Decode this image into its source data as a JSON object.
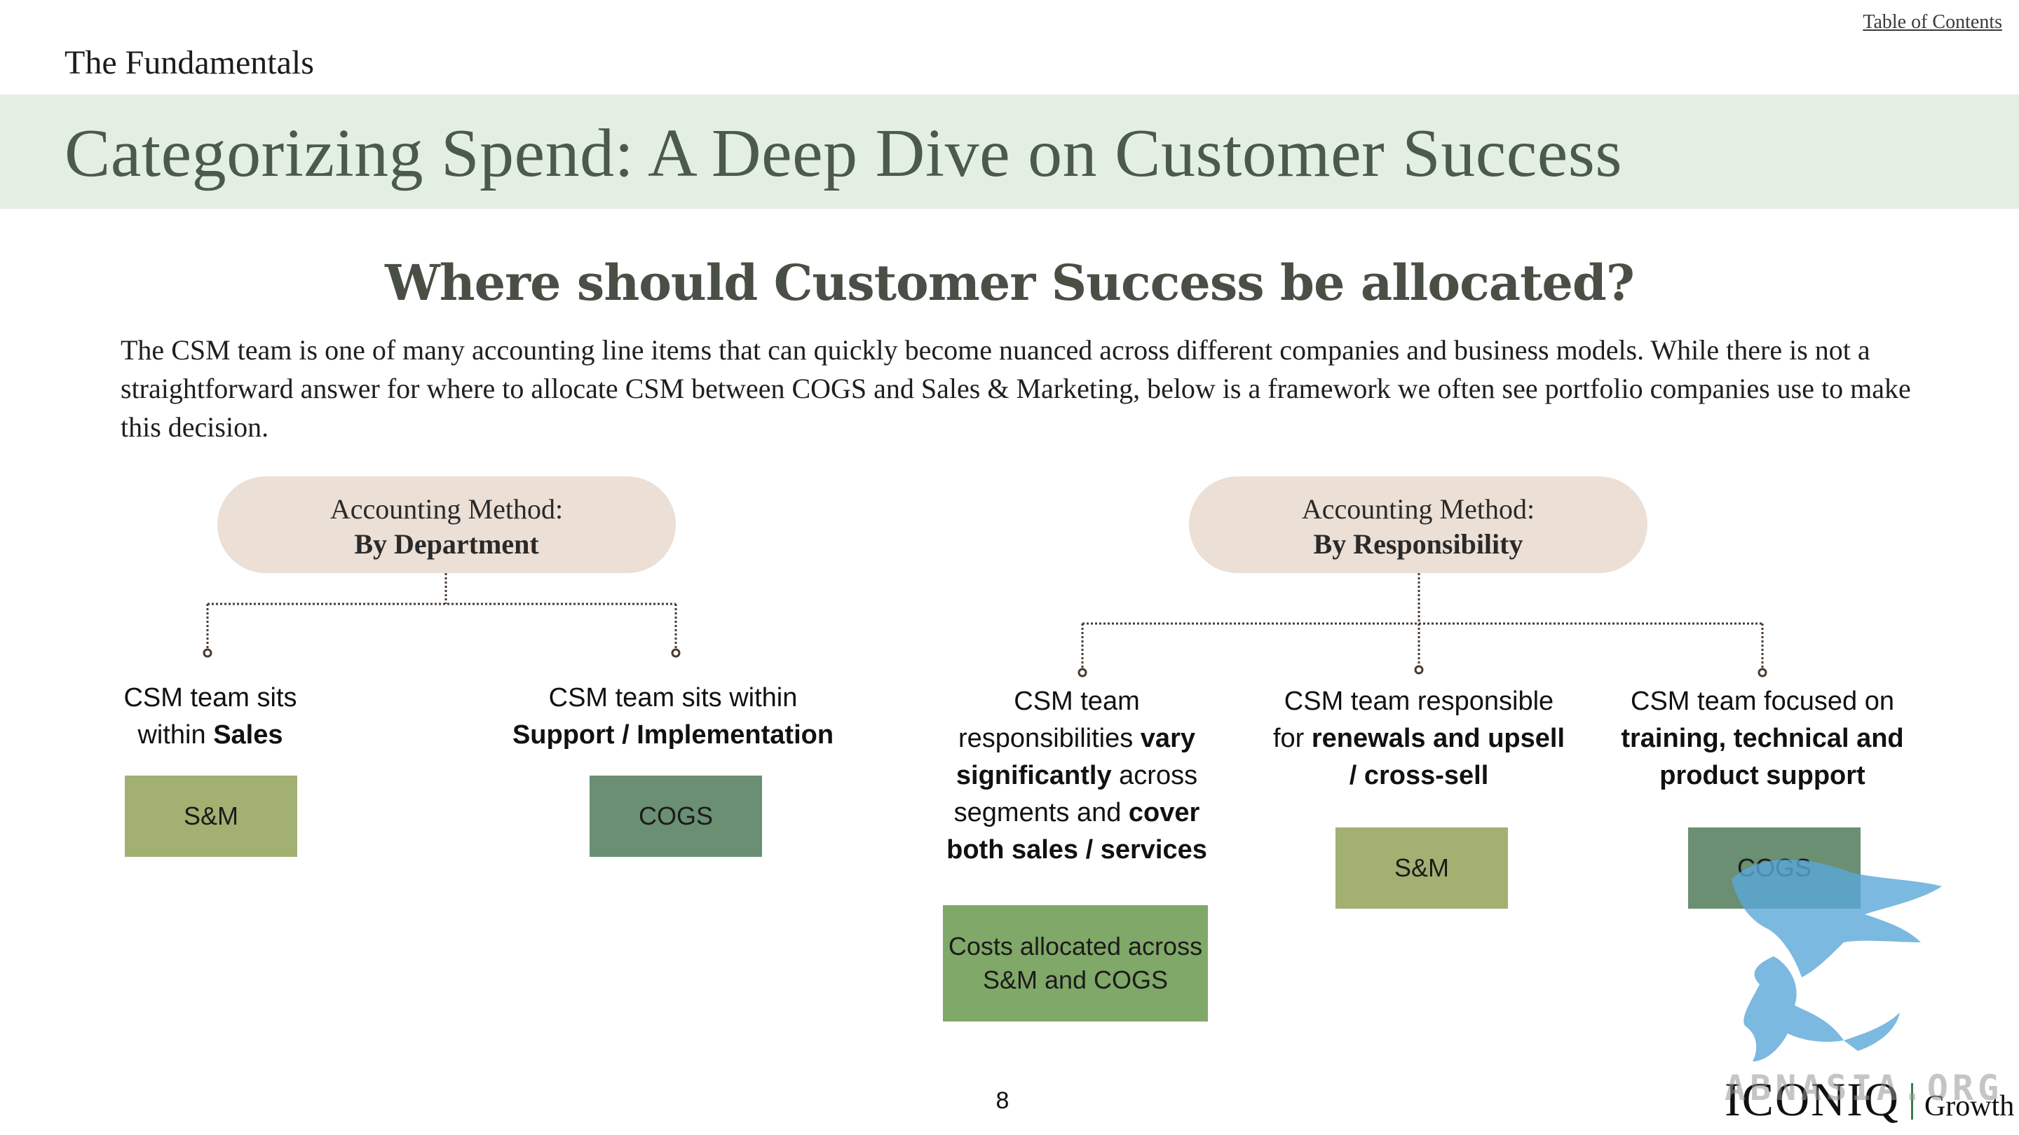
{
  "header": {
    "toc_link": "Table of Contents",
    "section": "The Fundamentals",
    "title": "Categorizing Spend: A Deep Dive on Customer Success"
  },
  "main": {
    "question": "Where should Customer Success be allocated?",
    "intro": "The CSM team is one of many accounting line items that can quickly become nuanced across different companies and business models. While there is not a straightforward answer for where to allocate CSM between COGS and Sales & Marketing, below is a framework we often see portfolio companies use to make this decision."
  },
  "methods": {
    "department": {
      "label": "Accounting Method:",
      "name": "By Department",
      "items": [
        {
          "text_1": "CSM team sits",
          "text_2": "within ",
          "bold": "Sales",
          "tag": "S&M"
        },
        {
          "text_1": "CSM team sits within",
          "bold": "Support / Implementation",
          "tag": "COGS"
        }
      ]
    },
    "responsibility": {
      "label": "Accounting Method:",
      "name": "By Responsibility",
      "items": [
        {
          "p1": "CSM team",
          "p2": "responsibilities ",
          "b1": "vary",
          "b2": "significantly",
          "p3": " across",
          "p4": "segments and ",
          "b3": "cover",
          "b4": "both sales / services",
          "tag": "Costs allocated across S&M and COGS"
        },
        {
          "p1": "CSM team responsible",
          "p2": "for ",
          "b1": "renewals and upsell",
          "b2": "/ cross-sell",
          "tag": "S&M"
        },
        {
          "p1": "CSM team focused on",
          "b1": "training, technical and",
          "b2": "product support",
          "tag": "COGS"
        }
      ]
    }
  },
  "footer": {
    "page_number": "8",
    "logo_brand": "ICONIQ",
    "logo_sub": "Growth",
    "watermark": "ABNASIA.ORG"
  },
  "colors": {
    "title_band": "#e2efe2",
    "pill": "#ebdfd6",
    "sm_tag": "#a2b072",
    "cogs_tag": "#6a8f73",
    "mixed_tag": "#80a868",
    "connector": "#4a3a2e"
  }
}
